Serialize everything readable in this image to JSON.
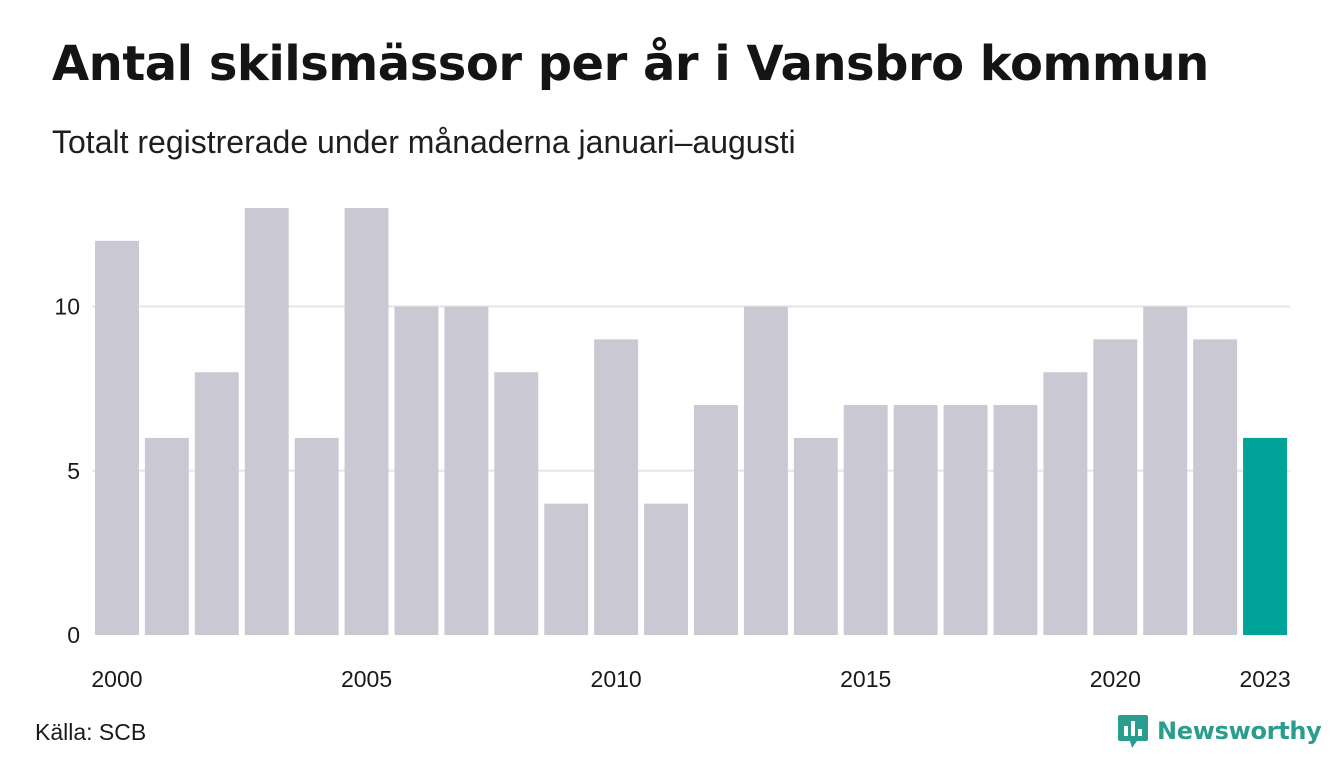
{
  "title": "Antal skilsmässor per år i Vansbro kommun",
  "subtitle": "Totalt registrerade under månaderna januari–augusti",
  "source": "Källa: SCB",
  "brand": {
    "name": "Newsworthy",
    "logo_icon": "newsworthy-chart-bubble-icon"
  },
  "colors": {
    "bar": "#c9c8d3",
    "highlight": "#00a398",
    "grid": "#e6e6e6",
    "brand": "#2a9d8f"
  },
  "chart_data": {
    "type": "bar",
    "categories": [
      "2000",
      "2001",
      "2002",
      "2003",
      "2004",
      "2005",
      "2006",
      "2007",
      "2008",
      "2009",
      "2010",
      "2011",
      "2012",
      "2013",
      "2014",
      "2015",
      "2016",
      "2017",
      "2018",
      "2019",
      "2020",
      "2021",
      "2022",
      "2023"
    ],
    "values": [
      12,
      6,
      8,
      13,
      6,
      13,
      10,
      10,
      8,
      4,
      9,
      4,
      7,
      10,
      6,
      7,
      7,
      7,
      7,
      8,
      9,
      10,
      9,
      6
    ],
    "highlight_category": "2023",
    "x_tick_labels": [
      "2000",
      "2005",
      "2010",
      "2015",
      "2020",
      "2023"
    ],
    "y_ticks": [
      0,
      5,
      10
    ],
    "ylim": [
      0,
      13
    ],
    "grid": true,
    "legend": "none"
  }
}
